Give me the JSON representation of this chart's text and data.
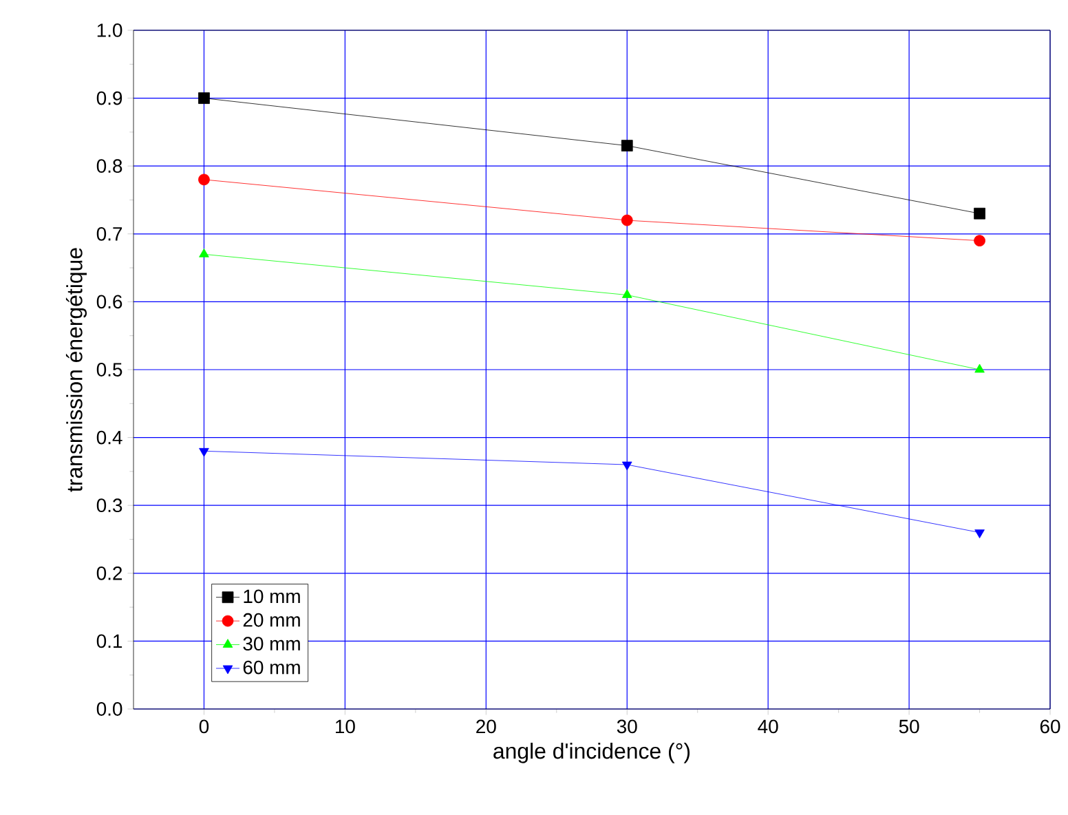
{
  "chart_data": {
    "type": "line",
    "xlabel": "angle d'incidence (°)",
    "ylabel": "transmission énergétique",
    "x": [
      0,
      30,
      55
    ],
    "series": [
      {
        "name": "10 mm",
        "color": "#000000",
        "marker": "square",
        "values": [
          0.9,
          0.83,
          0.73
        ]
      },
      {
        "name": "20 mm",
        "color": "#ff0000",
        "marker": "circle",
        "values": [
          0.78,
          0.72,
          0.69
        ]
      },
      {
        "name": "30 mm",
        "color": "#00ff00",
        "marker": "triangle",
        "values": [
          0.67,
          0.61,
          0.5
        ]
      },
      {
        "name": "60 mm",
        "color": "#0000ff",
        "marker": "triangle-down",
        "values": [
          0.38,
          0.36,
          0.26
        ]
      }
    ],
    "xlim": [
      -5,
      60
    ],
    "xticks": [
      0,
      10,
      20,
      30,
      40,
      50,
      60
    ],
    "ylim": [
      0,
      1.0
    ],
    "yticks": [
      {
        "value": 0,
        "label": "0.0"
      },
      {
        "value": 0.1,
        "label": "0.1"
      },
      {
        "value": 0.2,
        "label": "0.2"
      },
      {
        "value": 0.3,
        "label": "0.3"
      },
      {
        "value": 0.4,
        "label": "0.4"
      },
      {
        "value": 0.5,
        "label": "0.5"
      },
      {
        "value": 0.6,
        "label": "0.6"
      },
      {
        "value": 0.7,
        "label": "0.7"
      },
      {
        "value": 0.8,
        "label": "0.8"
      },
      {
        "value": 0.9,
        "label": "0.9"
      },
      {
        "value": 1.0,
        "label": "1.0"
      }
    ],
    "grid": true,
    "legend": "bottom left",
    "line_style": "solid"
  }
}
